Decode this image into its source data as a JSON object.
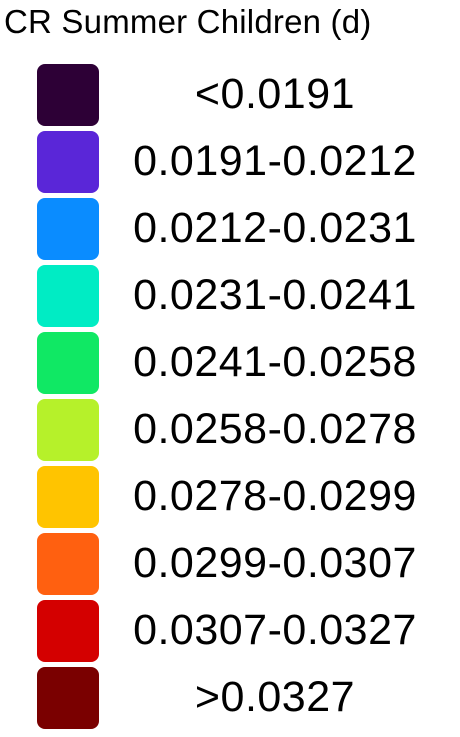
{
  "legend": {
    "title": "CR Summer Children (d)",
    "items": [
      {
        "label": "<0.0191",
        "color": "#2d0036"
      },
      {
        "label": "0.0191-0.0212",
        "color": "#5a26d8"
      },
      {
        "label": "0.0212-0.0231",
        "color": "#0a8cff"
      },
      {
        "label": "0.0231-0.0241",
        "color": "#00ecc4"
      },
      {
        "label": "0.0241-0.0258",
        "color": "#10e864"
      },
      {
        "label": "0.0258-0.0278",
        "color": "#b6f12a"
      },
      {
        "label": "0.0278-0.0299",
        "color": "#ffc400"
      },
      {
        "label": "0.0299-0.0307",
        "color": "#ff6010"
      },
      {
        "label": "0.0307-0.0327",
        "color": "#d40000"
      },
      {
        "label": ">0.0327",
        "color": "#7a0000"
      }
    ]
  }
}
